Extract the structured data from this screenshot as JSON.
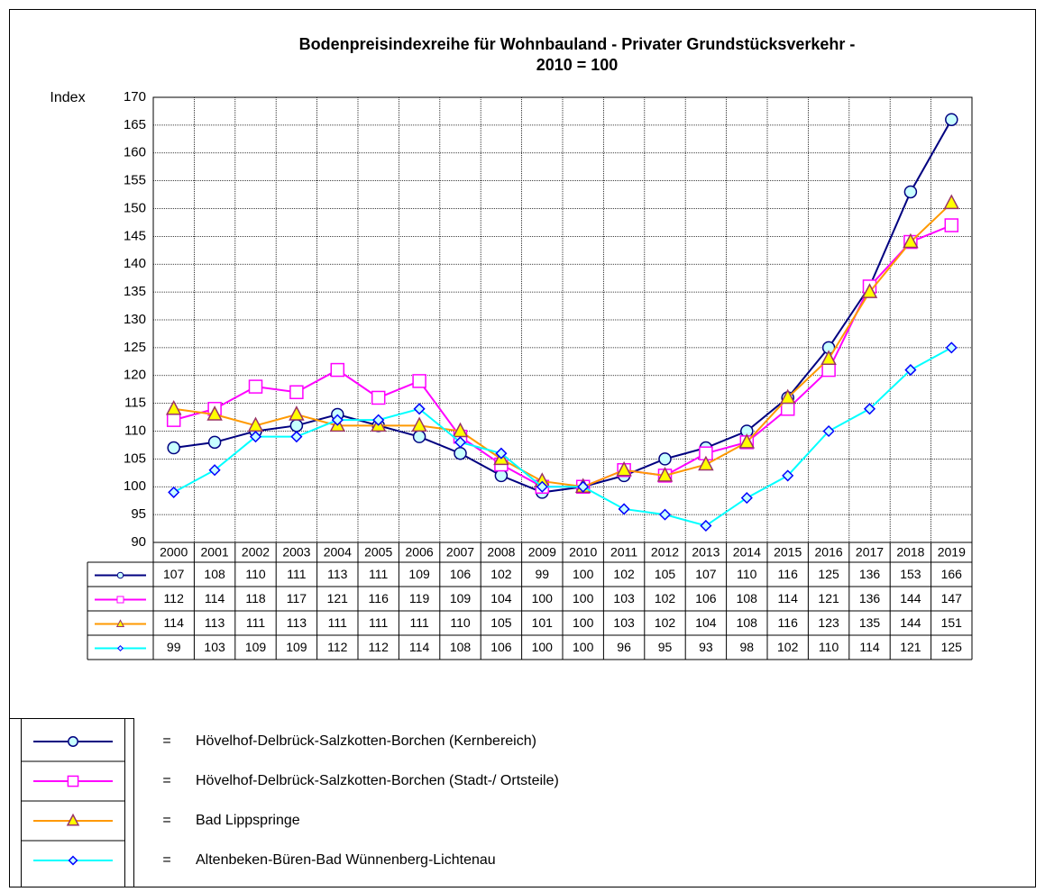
{
  "chart_data": {
    "type": "line",
    "title": [
      "Bodenpreisindexreihe für Wohnbauland - Privater Grundstücksverkehr -",
      "2010 = 100"
    ],
    "ylabel": "Index",
    "categories": [
      "2000",
      "2001",
      "2002",
      "2003",
      "2004",
      "2005",
      "2006",
      "2007",
      "2008",
      "2009",
      "2010",
      "2011",
      "2012",
      "2013",
      "2014",
      "2015",
      "2016",
      "2017",
      "2018",
      "2019"
    ],
    "ylim": [
      90,
      170
    ],
    "yticks": [
      90,
      95,
      100,
      105,
      110,
      115,
      120,
      125,
      130,
      135,
      140,
      145,
      150,
      155,
      160,
      165,
      170
    ],
    "grid": true,
    "legend_separator": "=",
    "series": [
      {
        "name": "Hövelhof-Delbrück-Salzkotten-Borchen (Kernbereich)",
        "color": "#000080",
        "marker": "circle",
        "marker_fill": "#c8ffff",
        "marker_stroke": "#000080",
        "values": [
          107,
          108,
          110,
          111,
          113,
          111,
          109,
          106,
          102,
          99,
          100,
          102,
          105,
          107,
          110,
          116,
          125,
          136,
          153,
          166
        ]
      },
      {
        "name": "Hövelhof-Delbrück-Salzkotten-Borchen (Stadt-/ Ortsteile)",
        "color": "#ff00ff",
        "marker": "square",
        "marker_fill": "#ffffff",
        "marker_stroke": "#ff00ff",
        "values": [
          112,
          114,
          118,
          117,
          121,
          116,
          119,
          109,
          104,
          100,
          100,
          103,
          102,
          106,
          108,
          114,
          121,
          136,
          144,
          147
        ]
      },
      {
        "name": "Bad Lippspringe",
        "color": "#ff9900",
        "marker": "triangle",
        "marker_fill": "#ffff00",
        "marker_stroke": "#993366",
        "values": [
          114,
          113,
          111,
          113,
          111,
          111,
          111,
          110,
          105,
          101,
          100,
          103,
          102,
          104,
          108,
          116,
          123,
          135,
          144,
          151
        ]
      },
      {
        "name": "Altenbeken-Büren-Bad Wünnenberg-Lichtenau",
        "color": "#00ffff",
        "marker": "diamond",
        "marker_fill": "#c8ffff",
        "marker_stroke": "#0000ff",
        "values": [
          99,
          103,
          109,
          109,
          112,
          112,
          114,
          108,
          106,
          100,
          100,
          96,
          95,
          93,
          98,
          102,
          110,
          114,
          121,
          125
        ]
      }
    ]
  }
}
